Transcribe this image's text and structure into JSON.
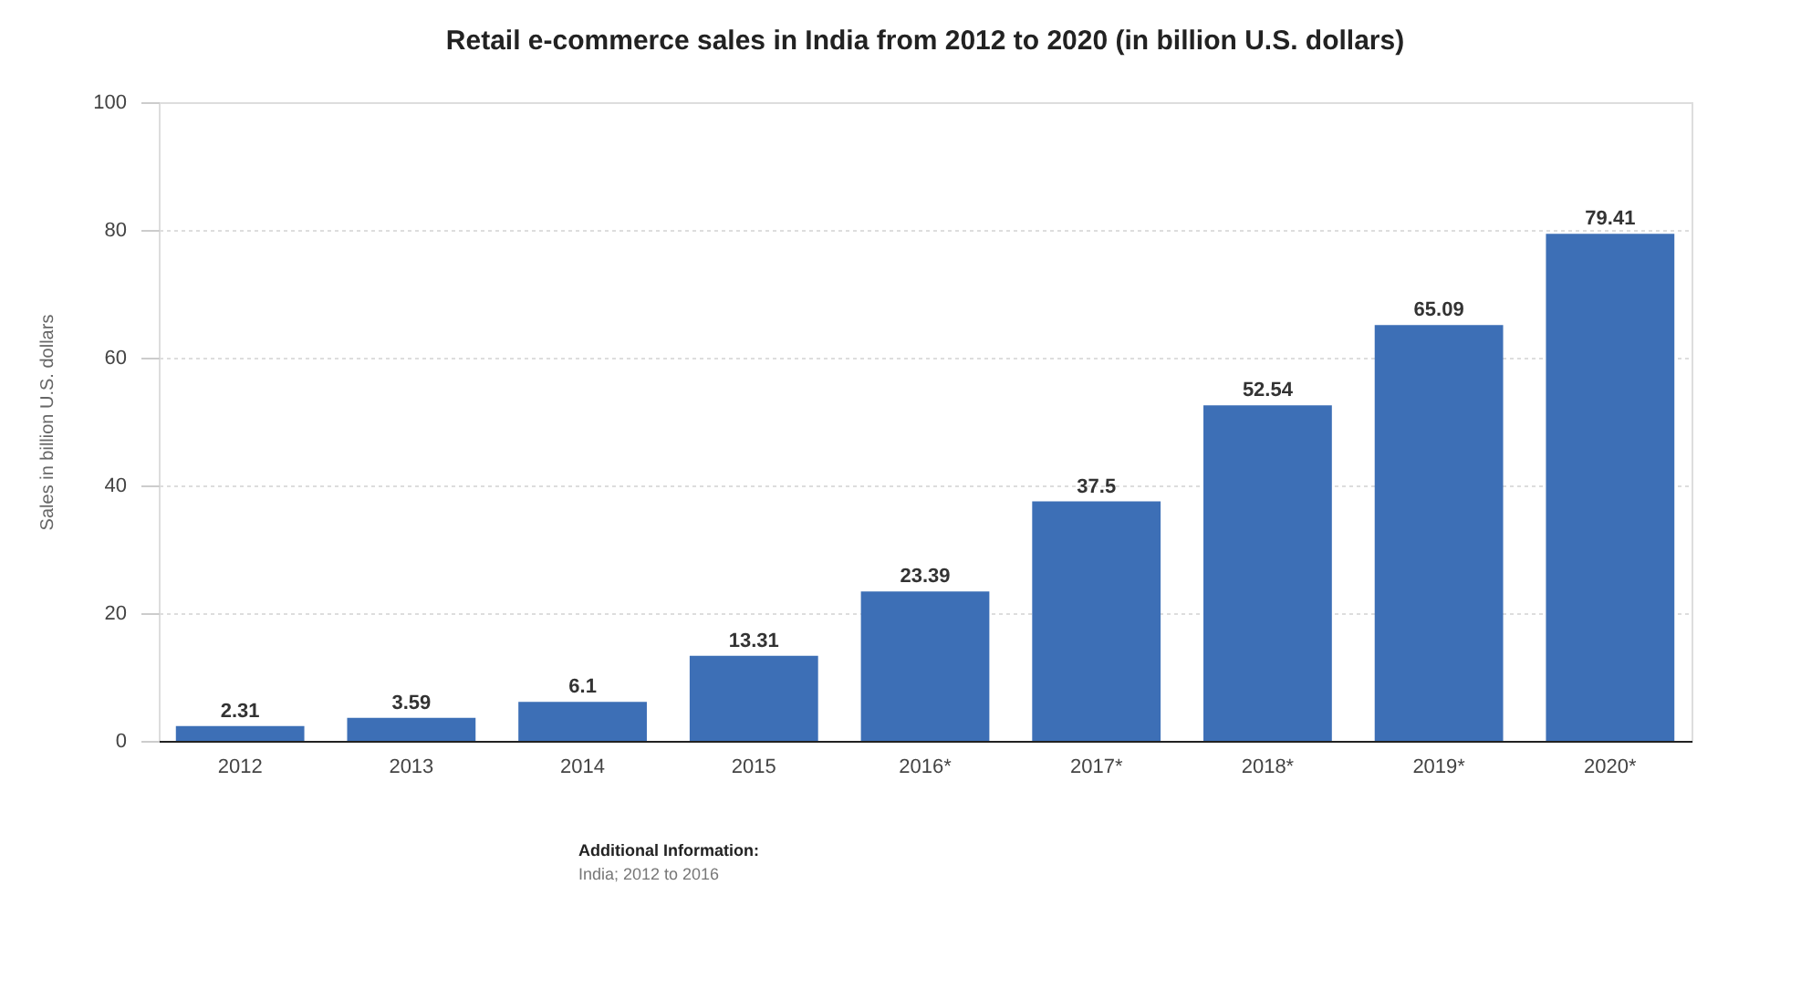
{
  "chart_data": {
    "type": "bar",
    "title": "Retail e-commerce sales in India from 2012 to 2020 (in billion U.S. dollars)",
    "ylabel": "Sales in billion U.S. dollars",
    "categories": [
      "2012",
      "2013",
      "2014",
      "2015",
      "2016*",
      "2017*",
      "2018*",
      "2019*",
      "2020*"
    ],
    "values": [
      2.31,
      3.59,
      6.1,
      13.31,
      23.39,
      37.5,
      52.54,
      65.09,
      79.41
    ],
    "color": "#3d6fb6",
    "ylim": [
      0,
      100
    ],
    "yticks": [
      0,
      20,
      40,
      60,
      80,
      100
    ],
    "grid": "y",
    "data_labels": true,
    "annotations": [
      "Additional Information:",
      "India; 2012 to 2016"
    ]
  }
}
